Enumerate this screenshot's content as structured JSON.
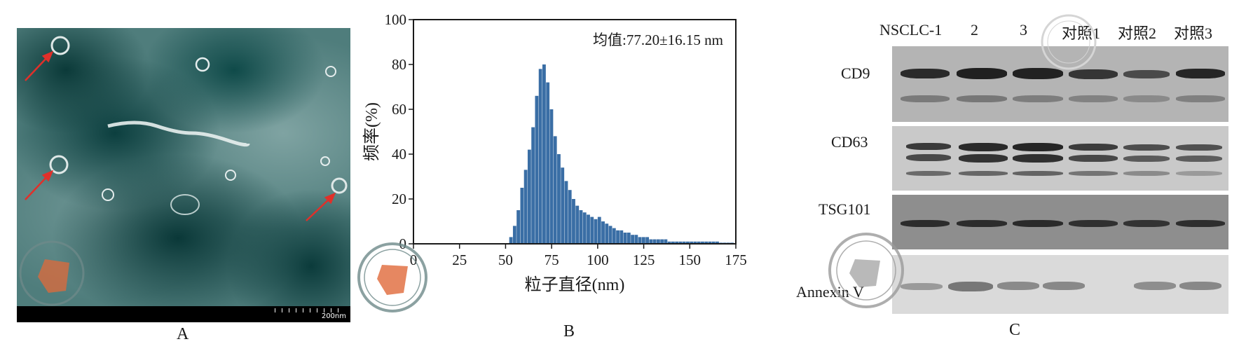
{
  "panels": {
    "a": {
      "label": "A",
      "scale_bar_text": "200nm"
    },
    "b": {
      "label": "B",
      "annotation": "均值:77.20±16.15 nm"
    },
    "c": {
      "label": "C",
      "lanes": [
        "NSCLC-1",
        "2",
        "3",
        "对照1",
        "对照2",
        "对照3"
      ],
      "proteins": [
        "CD9",
        "CD63",
        "TSG101",
        "Annexin V"
      ]
    }
  },
  "chart_data": {
    "type": "bar",
    "title": "",
    "xlabel": "粒子直径(nm)",
    "ylabel": "频率(%)",
    "xlim": [
      0,
      175
    ],
    "ylim": [
      0,
      100
    ],
    "xticks": [
      0,
      25,
      50,
      75,
      100,
      125,
      150,
      175
    ],
    "yticks": [
      0,
      20,
      40,
      60,
      80,
      100
    ],
    "annotation": "均值:77.20±16.15 nm",
    "x": [
      53,
      55,
      57,
      59,
      61,
      63,
      65,
      67,
      69,
      71,
      73,
      75,
      77,
      79,
      81,
      83,
      85,
      87,
      89,
      91,
      93,
      95,
      97,
      99,
      101,
      103,
      105,
      107,
      109,
      111,
      113,
      115,
      117,
      119,
      121,
      123,
      125,
      127,
      129,
      131,
      133,
      135,
      137,
      139,
      141,
      143,
      145,
      147,
      149,
      151,
      153,
      155,
      157,
      159,
      161,
      163,
      165,
      167,
      169,
      171,
      173
    ],
    "values": [
      3,
      8,
      15,
      25,
      33,
      42,
      52,
      66,
      78,
      80,
      72,
      60,
      48,
      40,
      34,
      28,
      24,
      20,
      17,
      15,
      14,
      13,
      12,
      11,
      12,
      10,
      9,
      8,
      7,
      6,
      6,
      5,
      5,
      4,
      4,
      3,
      3,
      3,
      2,
      2,
      2,
      2,
      2,
      1,
      1,
      1,
      1,
      1,
      1,
      1,
      1,
      1,
      1,
      1,
      1,
      1,
      1,
      0.5,
      0.5,
      0.5,
      0.5
    ],
    "bar_color": "#3a6ea5",
    "grid": false
  },
  "colors": {
    "scale_arrow": "#e0302a",
    "watermark": "#6f8a8a",
    "watermark_fill": "#e06a3a"
  }
}
